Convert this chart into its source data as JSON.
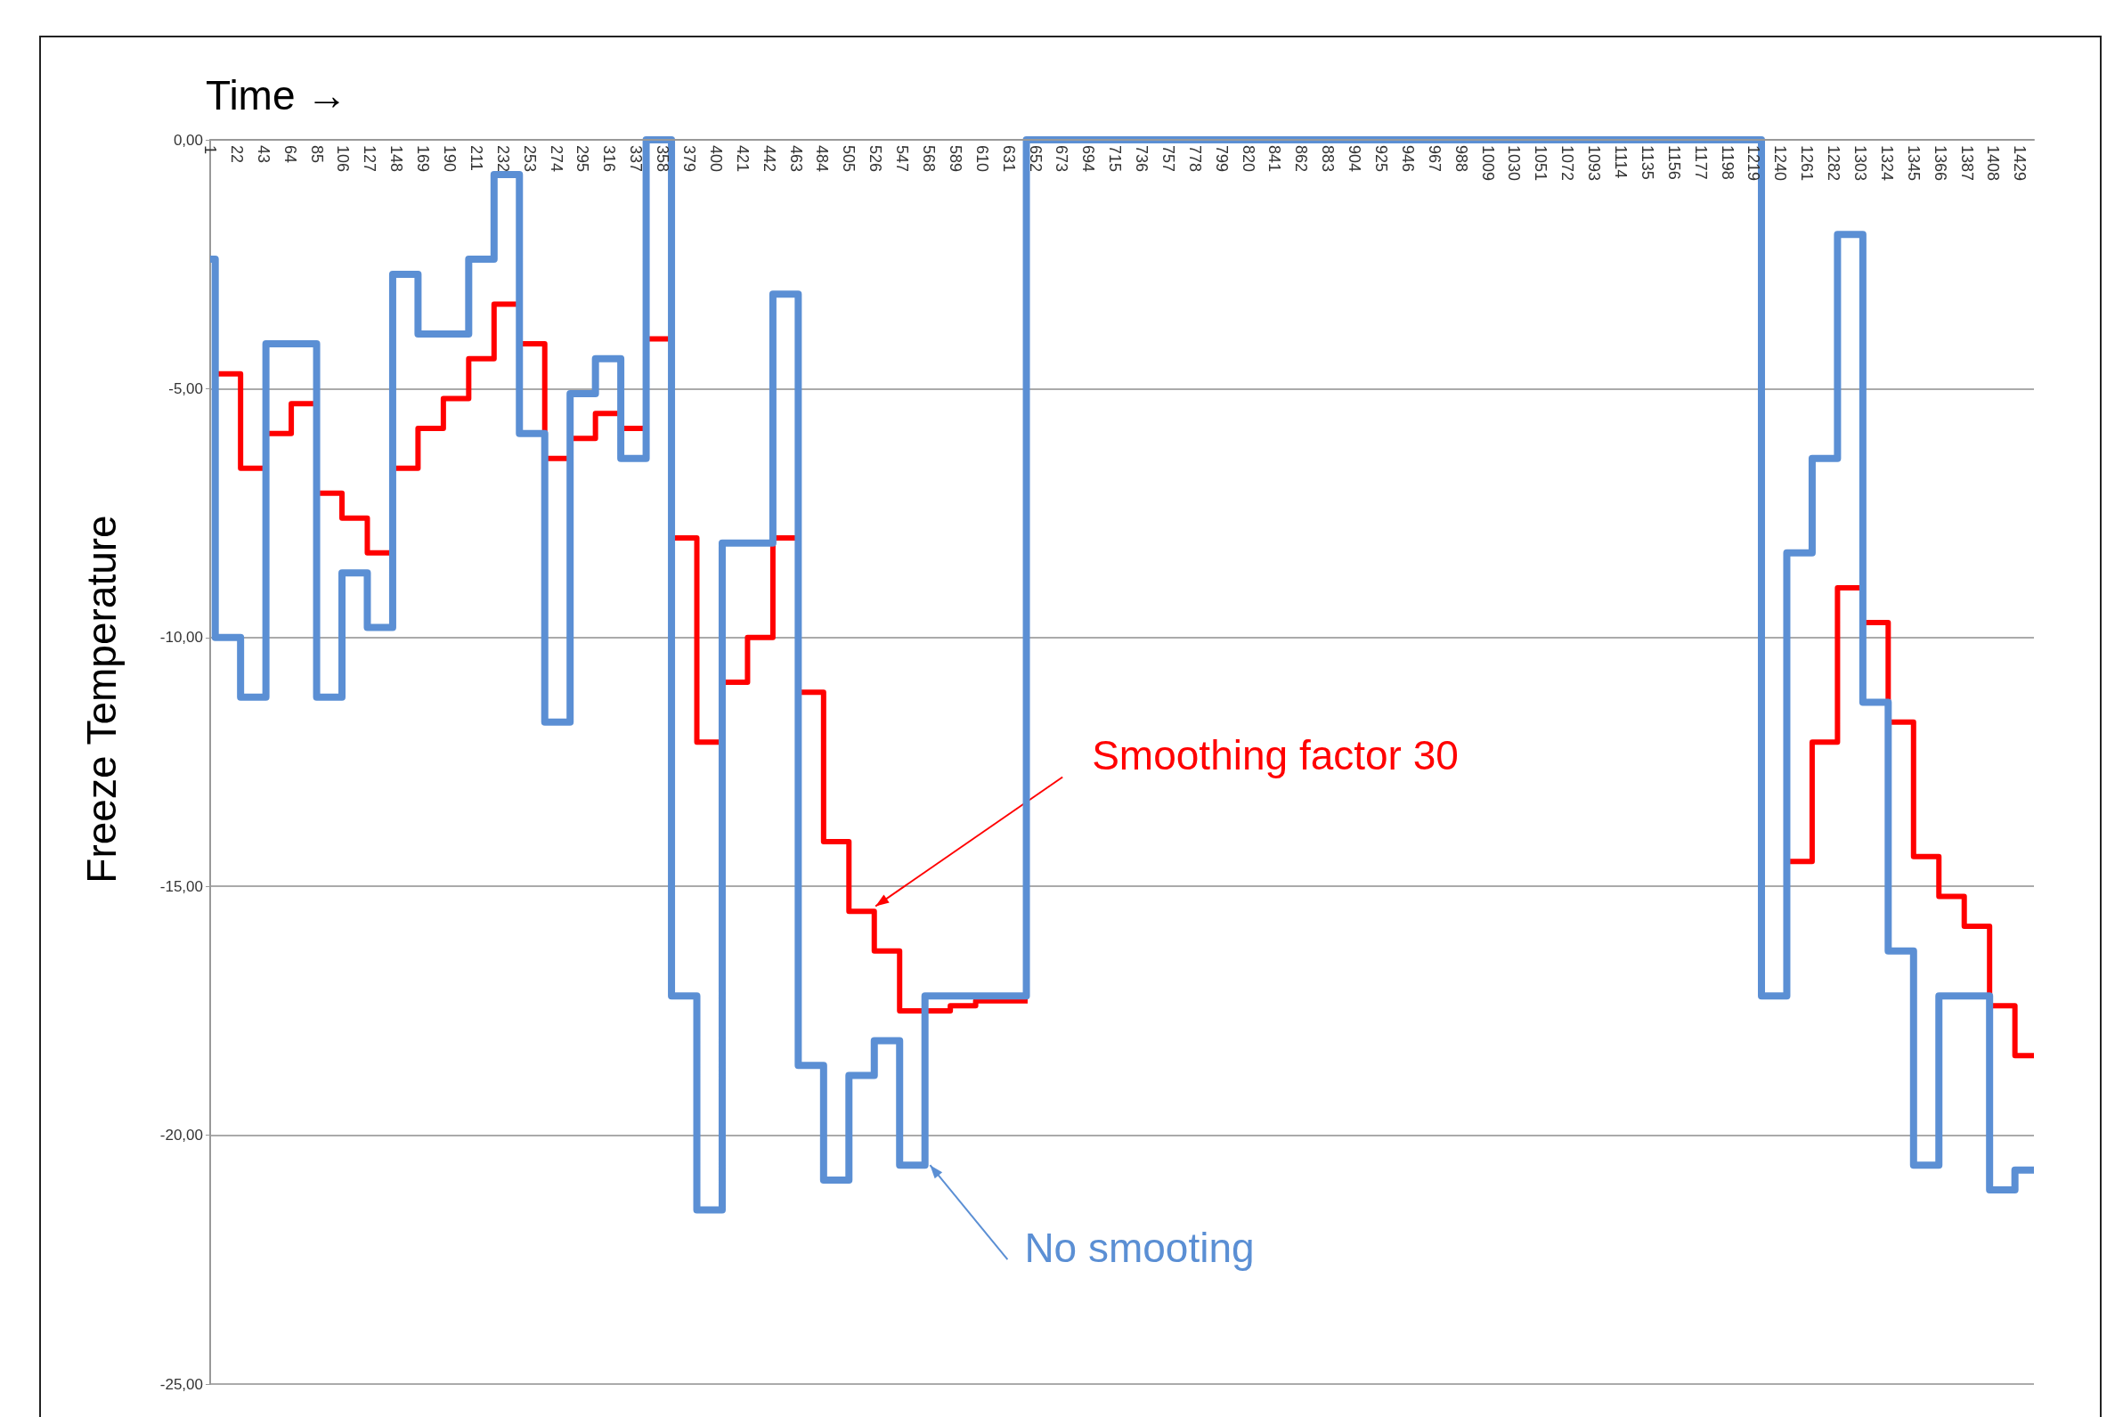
{
  "chart_data": {
    "type": "step",
    "xlabel": "Time →",
    "ylabel": "Freeze Temperature",
    "xlim": [
      1,
      1440
    ],
    "xticks": [
      1,
      22,
      43,
      64,
      85,
      106,
      127,
      148,
      169,
      190,
      211,
      232,
      253,
      274,
      295,
      316,
      337,
      358,
      379,
      400,
      421,
      442,
      463,
      484,
      505,
      526,
      547,
      568,
      589,
      610,
      631,
      652,
      673,
      694,
      715,
      736,
      757,
      778,
      799,
      820,
      841,
      862,
      883,
      904,
      925,
      946,
      967,
      988,
      1009,
      1030,
      1051,
      1072,
      1093,
      1114,
      1135,
      1156,
      1177,
      1198,
      1219,
      1240,
      1261,
      1282,
      1303,
      1324,
      1345,
      1366,
      1387,
      1408,
      1429
    ],
    "ylim": [
      -25,
      0
    ],
    "yticks": [
      {
        "value": -25,
        "label": "-25,00"
      },
      {
        "value": -20,
        "label": "-20,00"
      },
      {
        "value": -15,
        "label": "-15,00"
      },
      {
        "value": -10,
        "label": "-10,00"
      },
      {
        "value": -5,
        "label": "-5,00"
      },
      {
        "value": 0,
        "label": "0,00"
      }
    ],
    "grid": "y",
    "marker": "none",
    "line_style": "solid",
    "series": [
      {
        "color": "#ff0000",
        "x": [
          5,
          25,
          45,
          65,
          85,
          105,
          125,
          145,
          165,
          185,
          205,
          225,
          245,
          265,
          285,
          305,
          325,
          345,
          365,
          385,
          405,
          425,
          445,
          465,
          485,
          505,
          525,
          545,
          565,
          585,
          605,
          625,
          645,
          646,
          1225,
          1245,
          1265,
          1285,
          1305,
          1325,
          1345,
          1365,
          1385,
          1405,
          1425,
          1440
        ],
        "values": [
          -4.7,
          -6.6,
          -5.9,
          -5.3,
          -7.1,
          -7.6,
          -8.3,
          -6.6,
          -5.8,
          -5.2,
          -4.4,
          -3.3,
          -4.1,
          -6.4,
          -6.0,
          -5.5,
          -5.8,
          -4.0,
          -8.0,
          -12.1,
          -10.9,
          -10.0,
          -8.0,
          -11.1,
          -14.1,
          -15.5,
          -16.3,
          -17.5,
          -17.5,
          -17.4,
          -17.3,
          -17.3,
          -17.3,
          null,
          null,
          -14.5,
          -12.1,
          -9.0,
          -9.7,
          -11.7,
          -14.4,
          -15.2,
          -15.8,
          -17.4,
          -18.4,
          -18.4
        ]
      },
      {
        "color": "#5b8fd4",
        "x": [
          1,
          5,
          25,
          45,
          85,
          105,
          125,
          145,
          165,
          205,
          225,
          245,
          265,
          285,
          305,
          325,
          345,
          365,
          385,
          405,
          445,
          465,
          485,
          505,
          525,
          545,
          565,
          645,
          1225,
          1245,
          1265,
          1285,
          1305,
          1325,
          1345,
          1365,
          1405,
          1425,
          1440
        ],
        "values": [
          -2.4,
          -10.0,
          -11.2,
          -4.1,
          -11.2,
          -8.7,
          -9.8,
          -2.7,
          -3.9,
          -2.4,
          -0.7,
          -5.9,
          -11.7,
          -5.1,
          -4.4,
          -6.4,
          0,
          -17.2,
          -21.5,
          -8.1,
          -3.1,
          -18.6,
          -20.9,
          -18.8,
          -18.1,
          -20.6,
          -17.2,
          0,
          -17.2,
          -8.3,
          -6.4,
          -1.9,
          -11.3,
          -16.3,
          -20.6,
          -17.2,
          -21.1,
          -20.7,
          -20.7
        ]
      }
    ],
    "annotations": [
      {
        "text": "Smoothing factor 30",
        "x": 526,
        "y": -15.4
      },
      {
        "text": "No smooting",
        "x": 569,
        "y": -20.6
      }
    ]
  }
}
